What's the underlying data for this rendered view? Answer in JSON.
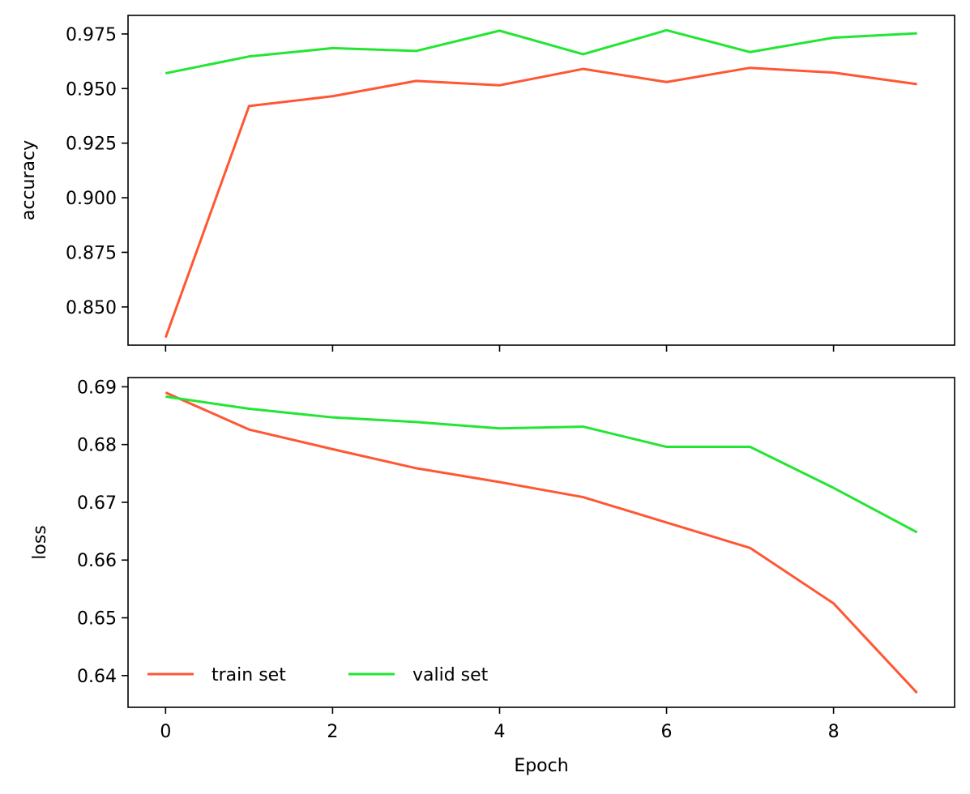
{
  "chart_data": [
    {
      "type": "line",
      "ylabel": "accuracy",
      "xlabel": "",
      "x": [
        0,
        1,
        2,
        3,
        4,
        5,
        6,
        7,
        8,
        9
      ],
      "xlim": [
        -0.45,
        9.45
      ],
      "ylim": [
        0.8325,
        0.9835
      ],
      "xticks": [
        0,
        2,
        4,
        6,
        8
      ],
      "xtick_labels_shown": false,
      "yticks": [
        0.85,
        0.875,
        0.9,
        0.925,
        0.95,
        0.975
      ],
      "ytick_labels": [
        "0.850",
        "0.875",
        "0.900",
        "0.925",
        "0.950",
        "0.975"
      ],
      "grid": false,
      "series": [
        {
          "name": "train set",
          "color": "#ff5733",
          "values": [
            0.836,
            0.942,
            0.9465,
            0.9535,
            0.9515,
            0.959,
            0.953,
            0.9595,
            0.9573,
            0.952
          ]
        },
        {
          "name": "valid set",
          "color": "#22e633",
          "values": [
            0.957,
            0.9647,
            0.9685,
            0.9672,
            0.9765,
            0.9657,
            0.9767,
            0.9667,
            0.9733,
            0.9753
          ]
        }
      ]
    },
    {
      "type": "line",
      "ylabel": "loss",
      "xlabel": "Epoch",
      "x": [
        0,
        1,
        2,
        3,
        4,
        5,
        6,
        7,
        8,
        9
      ],
      "xlim": [
        -0.45,
        9.45
      ],
      "ylim": [
        0.6345,
        0.6916
      ],
      "xticks": [
        0,
        2,
        4,
        6,
        8
      ],
      "xtick_labels": [
        "0",
        "2",
        "4",
        "6",
        "8"
      ],
      "yticks": [
        0.64,
        0.65,
        0.66,
        0.67,
        0.68,
        0.69
      ],
      "ytick_labels": [
        "0.64",
        "0.65",
        "0.66",
        "0.67",
        "0.68",
        "0.69"
      ],
      "grid": false,
      "legend": {
        "position": "lower-left",
        "entries": [
          "train set",
          "valid set"
        ]
      },
      "series": [
        {
          "name": "train set",
          "color": "#ff5733",
          "values": [
            0.689,
            0.6826,
            0.6792,
            0.6759,
            0.6735,
            0.6709,
            0.6665,
            0.6621,
            0.6525,
            0.637
          ]
        },
        {
          "name": "valid set",
          "color": "#22e633",
          "values": [
            0.6883,
            0.6862,
            0.6847,
            0.6839,
            0.6828,
            0.6831,
            0.6796,
            0.6796,
            0.6725,
            0.6648
          ]
        }
      ]
    }
  ]
}
